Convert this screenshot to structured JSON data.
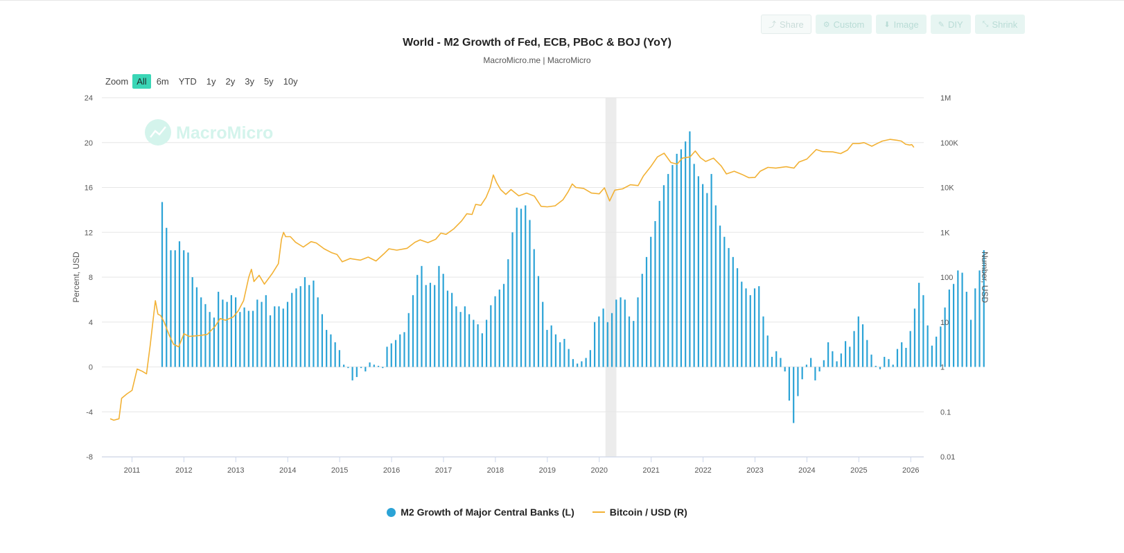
{
  "toolbar": {
    "share_label": "Share",
    "custom_label": "Custom",
    "image_label": "Image",
    "diy_label": "DIY",
    "shrink_label": "Shrink"
  },
  "zoom": {
    "label": "Zoom",
    "options": [
      "All",
      "6m",
      "YTD",
      "1y",
      "2y",
      "3y",
      "5y",
      "10y"
    ],
    "selected": "All"
  },
  "watermark": "MacroMicro",
  "colors": {
    "bars": "#2ba3d6",
    "line": "#f2b134",
    "accent": "#3ad6b6",
    "shade": "#ececec"
  },
  "chart_data": {
    "type": "bar+line",
    "title": "World - M2 Growth of Fed, ECB, PBoC & BOJ (YoY)",
    "subtitle": "MacroMicro.me | MacroMicro",
    "left_axis": {
      "label": "Percent, USD",
      "min": -8,
      "max": 24,
      "ticks": [
        "24",
        "20",
        "16",
        "12",
        "8",
        "4",
        "0",
        "-4",
        "-8"
      ]
    },
    "right_axis": {
      "label": "Number, USD",
      "scale": "log",
      "min": 0.01,
      "max": 1000000,
      "ticks": [
        "1M",
        "100K",
        "10K",
        "1K",
        "100",
        "10",
        "1",
        "0.1",
        "0.01"
      ]
    },
    "x_axis": {
      "ticks": [
        "2011",
        "2012",
        "2013",
        "2014",
        "2015",
        "2016",
        "2017",
        "2018",
        "2019",
        "2020",
        "2021",
        "2022",
        "2023",
        "2024",
        "2025",
        "2026"
      ],
      "min": 2010.42,
      "max": 2026.25
    },
    "shaded_period": [
      2020.12,
      2020.33
    ],
    "series": [
      {
        "name": "M2 Growth of Major Central Banks (L)",
        "type": "bar",
        "start": 2011.58,
        "step": 0.0833,
        "values": [
          14.7,
          12.4,
          10.4,
          10.4,
          11.2,
          10.4,
          10.2,
          8.0,
          7.1,
          6.2,
          5.6,
          4.9,
          4.4,
          6.7,
          6.0,
          5.8,
          6.4,
          6.2,
          4.9,
          5.3,
          5.0,
          5.0,
          6.0,
          5.8,
          6.4,
          4.6,
          5.4,
          5.4,
          5.2,
          5.8,
          6.6,
          7.0,
          7.2,
          8.0,
          7.3,
          7.7,
          6.2,
          4.7,
          3.3,
          2.9,
          2.2,
          1.5,
          0.2,
          -0.1,
          -1.2,
          -0.9,
          -0.1,
          -0.4,
          0.4,
          0.2,
          0.1,
          -0.1,
          1.8,
          2.1,
          2.4,
          2.9,
          3.1,
          4.8,
          6.4,
          8.2,
          9.0,
          7.3,
          7.5,
          7.3,
          9.0,
          8.3,
          6.8,
          6.6,
          5.4,
          4.9,
          5.4,
          4.7,
          4.2,
          3.8,
          3.0,
          4.2,
          5.5,
          6.3,
          6.9,
          7.4,
          9.6,
          12.0,
          14.2,
          14.1,
          14.4,
          13.1,
          10.5,
          8.1,
          5.8,
          3.3,
          3.7,
          2.9,
          2.2,
          2.5,
          1.6,
          0.7,
          0.3,
          0.5,
          0.8,
          1.5,
          4.0,
          4.5,
          5.2,
          4.0,
          4.8,
          6.0,
          6.2,
          6.0,
          4.5,
          4.1,
          6.2,
          8.3,
          9.8,
          11.6,
          13.0,
          14.8,
          16.2,
          17.2,
          18.0,
          19.0,
          19.4,
          20.1,
          21.0,
          18.1,
          17.0,
          16.3,
          15.5,
          17.2,
          14.4,
          12.6,
          11.6,
          10.6,
          9.8,
          8.8,
          7.6,
          7.0,
          6.4,
          7.0,
          7.2,
          4.5,
          2.8,
          0.9,
          1.4,
          0.8,
          -0.4,
          -3.0,
          -5.0,
          -2.6,
          -1.1,
          0.2,
          0.8,
          -1.2,
          -0.4,
          0.6,
          2.2,
          1.4,
          0.5,
          1.2,
          2.3,
          1.8,
          3.2,
          4.5,
          3.8,
          2.4,
          1.1,
          0.1,
          -0.2,
          0.9,
          0.7,
          0.2,
          1.6,
          2.2,
          1.7,
          3.2,
          5.2,
          7.5,
          6.4,
          3.7,
          1.9,
          2.7,
          3.6,
          5.3,
          6.9,
          7.4,
          8.6,
          8.4,
          6.7,
          4.2,
          7.0,
          8.6,
          10.4
        ]
      },
      {
        "name": "Bitcoin / USD (R)",
        "type": "line",
        "points": [
          [
            2010.58,
            0.07
          ],
          [
            2010.65,
            0.065
          ],
          [
            2010.75,
            0.07
          ],
          [
            2010.8,
            0.2
          ],
          [
            2010.9,
            0.25
          ],
          [
            2011.0,
            0.3
          ],
          [
            2011.1,
            0.9
          ],
          [
            2011.2,
            0.8
          ],
          [
            2011.28,
            0.7
          ],
          [
            2011.35,
            3
          ],
          [
            2011.42,
            15
          ],
          [
            2011.45,
            30
          ],
          [
            2011.5,
            15
          ],
          [
            2011.55,
            14
          ],
          [
            2011.62,
            10
          ],
          [
            2011.72,
            5
          ],
          [
            2011.8,
            3.2
          ],
          [
            2011.9,
            2.8
          ],
          [
            2012.0,
            5.5
          ],
          [
            2012.1,
            4.8
          ],
          [
            2012.3,
            5
          ],
          [
            2012.45,
            5.3
          ],
          [
            2012.6,
            8
          ],
          [
            2012.7,
            12
          ],
          [
            2012.8,
            11
          ],
          [
            2012.95,
            13
          ],
          [
            2013.05,
            18
          ],
          [
            2013.15,
            30
          ],
          [
            2013.25,
            100
          ],
          [
            2013.3,
            150
          ],
          [
            2013.35,
            80
          ],
          [
            2013.45,
            110
          ],
          [
            2013.55,
            70
          ],
          [
            2013.7,
            120
          ],
          [
            2013.82,
            200
          ],
          [
            2013.88,
            700
          ],
          [
            2013.92,
            1000
          ],
          [
            2013.96,
            800
          ],
          [
            2014.05,
            800
          ],
          [
            2014.15,
            600
          ],
          [
            2014.3,
            470
          ],
          [
            2014.45,
            620
          ],
          [
            2014.55,
            580
          ],
          [
            2014.7,
            430
          ],
          [
            2014.85,
            350
          ],
          [
            2014.95,
            320
          ],
          [
            2015.05,
            220
          ],
          [
            2015.2,
            260
          ],
          [
            2015.4,
            240
          ],
          [
            2015.55,
            280
          ],
          [
            2015.7,
            230
          ],
          [
            2015.85,
            330
          ],
          [
            2015.95,
            430
          ],
          [
            2016.1,
            400
          ],
          [
            2016.3,
            440
          ],
          [
            2016.45,
            600
          ],
          [
            2016.55,
            680
          ],
          [
            2016.7,
            590
          ],
          [
            2016.85,
            700
          ],
          [
            2016.95,
            960
          ],
          [
            2017.05,
            900
          ],
          [
            2017.2,
            1200
          ],
          [
            2017.35,
            1800
          ],
          [
            2017.45,
            2600
          ],
          [
            2017.55,
            2500
          ],
          [
            2017.62,
            4200
          ],
          [
            2017.72,
            4000
          ],
          [
            2017.82,
            6000
          ],
          [
            2017.9,
            10000
          ],
          [
            2017.96,
            19000
          ],
          [
            2018.02,
            13000
          ],
          [
            2018.1,
            9000
          ],
          [
            2018.2,
            7000
          ],
          [
            2018.3,
            9000
          ],
          [
            2018.45,
            6500
          ],
          [
            2018.6,
            7500
          ],
          [
            2018.75,
            6400
          ],
          [
            2018.88,
            3800
          ],
          [
            2019.0,
            3700
          ],
          [
            2019.15,
            3900
          ],
          [
            2019.3,
            5300
          ],
          [
            2019.4,
            8000
          ],
          [
            2019.48,
            12000
          ],
          [
            2019.55,
            10000
          ],
          [
            2019.7,
            9500
          ],
          [
            2019.85,
            7500
          ],
          [
            2020.0,
            7200
          ],
          [
            2020.1,
            9800
          ],
          [
            2020.2,
            5000
          ],
          [
            2020.3,
            8700
          ],
          [
            2020.45,
            9300
          ],
          [
            2020.6,
            11500
          ],
          [
            2020.75,
            11000
          ],
          [
            2020.85,
            18000
          ],
          [
            2021.0,
            30000
          ],
          [
            2021.12,
            48000
          ],
          [
            2021.25,
            58000
          ],
          [
            2021.38,
            36000
          ],
          [
            2021.5,
            33000
          ],
          [
            2021.6,
            45000
          ],
          [
            2021.75,
            48000
          ],
          [
            2021.85,
            65000
          ],
          [
            2021.95,
            46000
          ],
          [
            2022.05,
            38000
          ],
          [
            2022.2,
            45000
          ],
          [
            2022.35,
            30000
          ],
          [
            2022.45,
            20000
          ],
          [
            2022.6,
            23000
          ],
          [
            2022.75,
            19500
          ],
          [
            2022.88,
            16500
          ],
          [
            2023.0,
            16700
          ],
          [
            2023.1,
            23000
          ],
          [
            2023.25,
            28000
          ],
          [
            2023.4,
            27000
          ],
          [
            2023.6,
            29000
          ],
          [
            2023.75,
            27000
          ],
          [
            2023.85,
            37000
          ],
          [
            2024.0,
            43000
          ],
          [
            2024.18,
            70000
          ],
          [
            2024.3,
            63000
          ],
          [
            2024.5,
            62000
          ],
          [
            2024.65,
            57000
          ],
          [
            2024.78,
            68000
          ],
          [
            2024.88,
            95000
          ],
          [
            2025.0,
            95000
          ],
          [
            2025.1,
            100000
          ],
          [
            2025.25,
            83000
          ],
          [
            2025.35,
            95000
          ],
          [
            2025.45,
            108000
          ],
          [
            2025.6,
            118000
          ],
          [
            2025.75,
            112000
          ],
          [
            2025.82,
            108000
          ],
          [
            2025.9,
            92000
          ],
          [
            2025.98,
            88000
          ],
          [
            2026.02,
            90000
          ],
          [
            2026.06,
            78000
          ]
        ]
      }
    ],
    "legend_position": "bottom-center"
  }
}
